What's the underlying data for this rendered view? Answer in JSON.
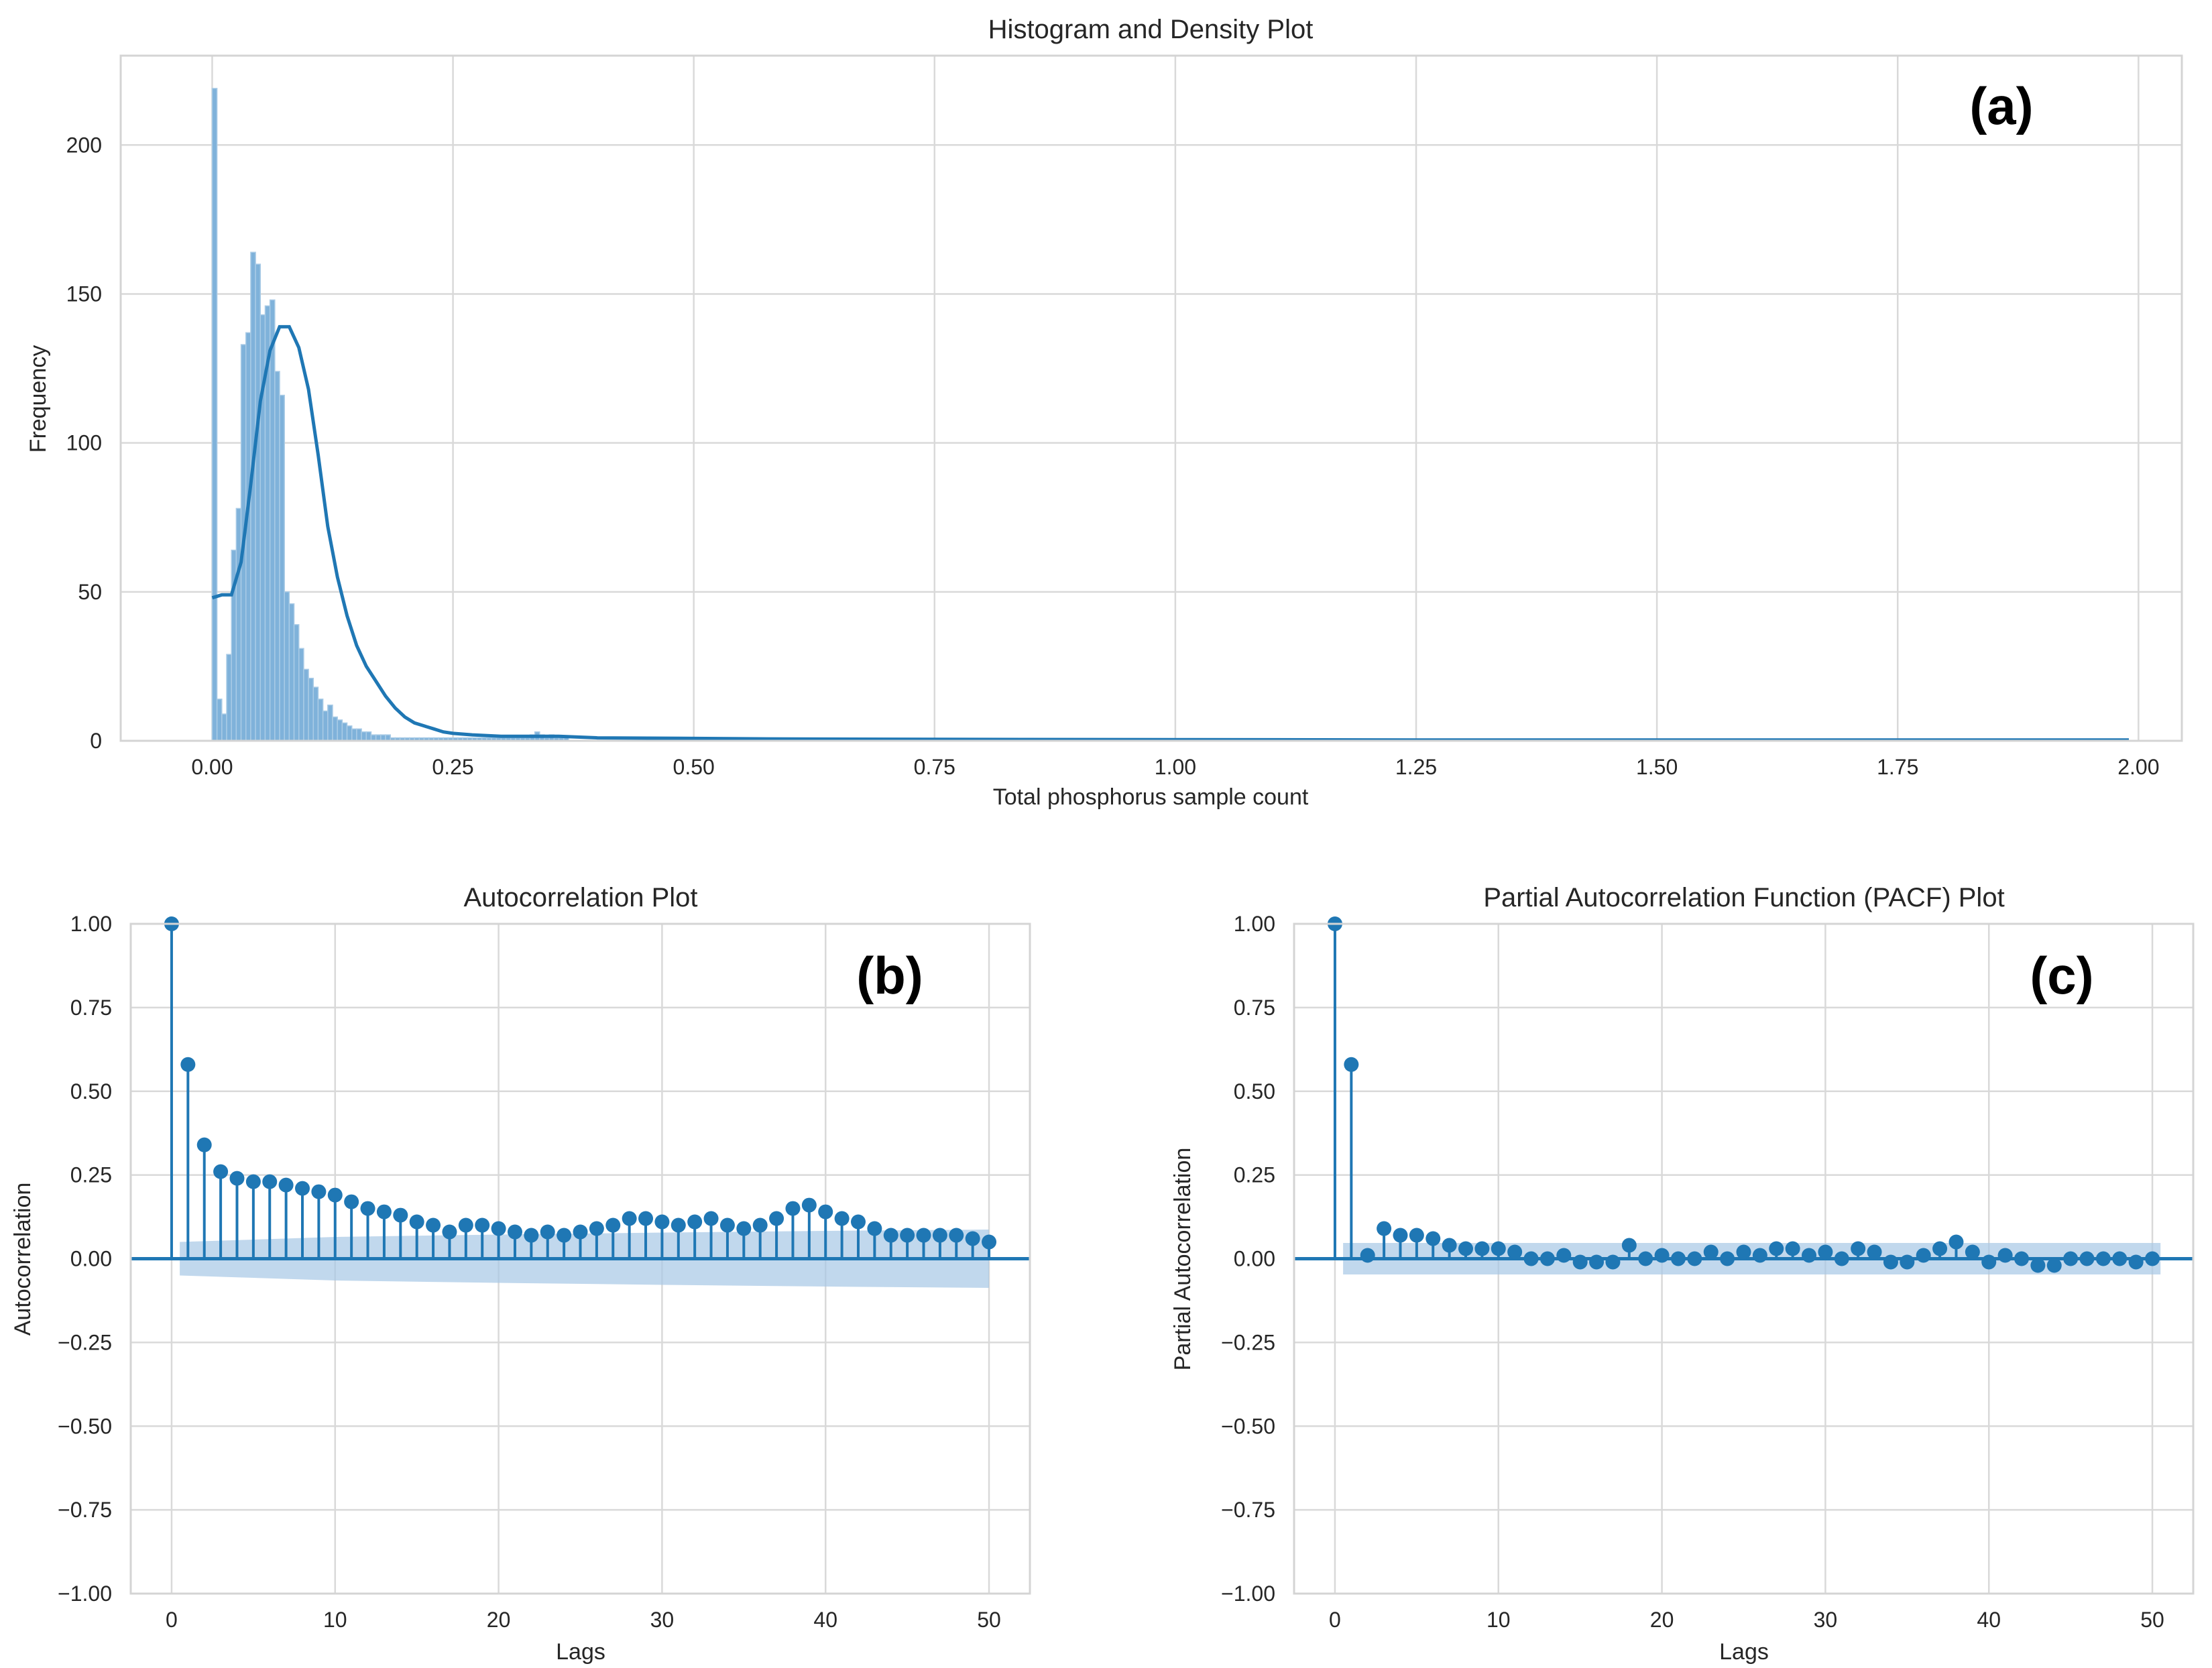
{
  "colors": {
    "series": "#1f77b4",
    "hist_fill": "#7fb2da",
    "hist_edge": "#a9cbe6",
    "conf_band": "#a6c8e6"
  },
  "chart_data": [
    {
      "type": "bar",
      "panel_label": "(a)",
      "title": "Histogram and Density Plot",
      "xlabel": "Total phosphorus sample count",
      "ylabel": "Frequency",
      "xlim": [
        -0.095,
        2.045
      ],
      "ylim": [
        0,
        230
      ],
      "xticks": [
        "0.00",
        "0.25",
        "0.50",
        "0.75",
        "1.00",
        "1.25",
        "1.50",
        "1.75",
        "2.00"
      ],
      "yticks": [
        "0",
        "50",
        "100",
        "150",
        "200"
      ],
      "bin_start": 0.0,
      "bin_width": 0.005,
      "counts": [
        219,
        14,
        9,
        29,
        64,
        78,
        133,
        137,
        164,
        160,
        143,
        146,
        148,
        124,
        116,
        50,
        46,
        39,
        31,
        24,
        21,
        18,
        14,
        10,
        12,
        8,
        7,
        6,
        5,
        4,
        4,
        3,
        3,
        2,
        2,
        2,
        2,
        1,
        1,
        1,
        1,
        1,
        1,
        1,
        1,
        1,
        1,
        1,
        1,
        1,
        1,
        1,
        1,
        1,
        1,
        1,
        1,
        1,
        1,
        1,
        1,
        1,
        1,
        1,
        1,
        1,
        2,
        3,
        2,
        1,
        2,
        1,
        1,
        1
      ],
      "kde_x": [
        0.0,
        0.01,
        0.02,
        0.03,
        0.04,
        0.05,
        0.06,
        0.07,
        0.08,
        0.09,
        0.1,
        0.11,
        0.12,
        0.13,
        0.14,
        0.15,
        0.16,
        0.17,
        0.18,
        0.19,
        0.2,
        0.21,
        0.22,
        0.23,
        0.24,
        0.25,
        0.27,
        0.3,
        0.33,
        0.36,
        0.4,
        0.5,
        0.6,
        0.75,
        1.0,
        1.25,
        1.5,
        1.75,
        1.99
      ],
      "kde_y": [
        48,
        49,
        49,
        60,
        86,
        114,
        131,
        139,
        139,
        132,
        118,
        96,
        72,
        55,
        42,
        32,
        25,
        20,
        15,
        11,
        8,
        6,
        5,
        4,
        3,
        2.5,
        2,
        1.5,
        1.5,
        1.5,
        1,
        0.8,
        0.6,
        0.5,
        0.4,
        0.3,
        0.3,
        0.3,
        0.3
      ]
    },
    {
      "type": "stem",
      "panel_label": "(b)",
      "title": "Autocorrelation Plot",
      "xlabel": "Lags",
      "ylabel": "Autocorrelation",
      "xlim": [
        -2.5,
        52.5
      ],
      "ylim": [
        -1.0,
        1.0
      ],
      "xticks": [
        "0",
        "10",
        "20",
        "30",
        "40",
        "50"
      ],
      "yticks": [
        "1.00",
        "0.75",
        "0.50",
        "0.25",
        "0.00",
        "−0.25",
        "−0.50",
        "−0.75",
        "−1.00"
      ],
      "lags": [
        0,
        1,
        2,
        3,
        4,
        5,
        6,
        7,
        8,
        9,
        10,
        11,
        12,
        13,
        14,
        15,
        16,
        17,
        18,
        19,
        20,
        21,
        22,
        23,
        24,
        25,
        26,
        27,
        28,
        29,
        30,
        31,
        32,
        33,
        34,
        35,
        36,
        37,
        38,
        39,
        40,
        41,
        42,
        43,
        44,
        45,
        46,
        47,
        48,
        49,
        50
      ],
      "values": [
        1.0,
        0.58,
        0.34,
        0.26,
        0.24,
        0.23,
        0.23,
        0.22,
        0.21,
        0.2,
        0.19,
        0.17,
        0.15,
        0.14,
        0.13,
        0.11,
        0.1,
        0.08,
        0.1,
        0.1,
        0.09,
        0.08,
        0.07,
        0.08,
        0.07,
        0.08,
        0.09,
        0.1,
        0.12,
        0.12,
        0.11,
        0.1,
        0.11,
        0.12,
        0.1,
        0.09,
        0.1,
        0.12,
        0.15,
        0.16,
        0.14,
        0.12,
        0.11,
        0.09,
        0.07,
        0.07,
        0.07,
        0.07,
        0.07,
        0.06,
        0.05
      ],
      "confidence_band": {
        "lags": [
          0.5,
          10,
          20,
          30,
          40,
          50
        ],
        "upper": [
          0.05,
          0.065,
          0.072,
          0.078,
          0.083,
          0.087
        ]
      }
    },
    {
      "type": "stem",
      "panel_label": "(c)",
      "title": "Partial Autocorrelation Function (PACF) Plot",
      "xlabel": "Lags",
      "ylabel": "Partial Autocorrelation",
      "xlim": [
        -2.5,
        52.5
      ],
      "ylim": [
        -1.0,
        1.0
      ],
      "xticks": [
        "0",
        "10",
        "20",
        "30",
        "40",
        "50"
      ],
      "yticks": [
        "1.00",
        "0.75",
        "0.50",
        "0.25",
        "0.00",
        "−0.25",
        "−0.50",
        "−0.75",
        "−1.00"
      ],
      "lags": [
        0,
        1,
        2,
        3,
        4,
        5,
        6,
        7,
        8,
        9,
        10,
        11,
        12,
        13,
        14,
        15,
        16,
        17,
        18,
        19,
        20,
        21,
        22,
        23,
        24,
        25,
        26,
        27,
        28,
        29,
        30,
        31,
        32,
        33,
        34,
        35,
        36,
        37,
        38,
        39,
        40,
        41,
        42,
        43,
        44,
        45,
        46,
        47,
        48,
        49,
        50
      ],
      "values": [
        1.0,
        0.58,
        0.01,
        0.09,
        0.07,
        0.07,
        0.06,
        0.04,
        0.03,
        0.03,
        0.03,
        0.02,
        0.0,
        0.0,
        0.01,
        -0.01,
        -0.01,
        -0.01,
        0.04,
        0.0,
        0.01,
        0.0,
        0.0,
        0.02,
        0.0,
        0.02,
        0.01,
        0.03,
        0.03,
        0.01,
        0.02,
        0.0,
        0.03,
        0.02,
        -0.01,
        -0.01,
        0.01,
        0.03,
        0.05,
        0.02,
        -0.01,
        0.01,
        0.0,
        -0.02,
        -0.02,
        0.0,
        0.0,
        0.0,
        0.0,
        -0.01,
        0.0
      ],
      "confidence_band": {
        "lags": [
          0.5,
          50.5
        ],
        "upper": [
          0.047,
          0.047
        ]
      }
    }
  ]
}
